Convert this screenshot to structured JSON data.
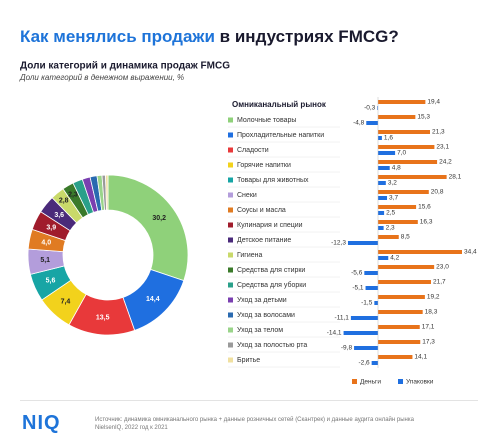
{
  "header": {
    "title_highlight": "Как менялись продажи",
    "title_rest": "в индустриях FMCG?"
  },
  "chart_data": [
    {
      "type": "pie",
      "donut": true,
      "title": "Доли категорий и динамика продаж FMCG",
      "subtitle": "Доли категорий в денежном выражении, %",
      "values": [
        30.2,
        14.4,
        13.5,
        7.4,
        5.6,
        5.1,
        4.0,
        3.9,
        3.6,
        2.8,
        2.3,
        2.0,
        1.6,
        1.4,
        1.0,
        0.7,
        0.5
      ],
      "value_labels": [
        "30,2",
        "14,4",
        "13,5",
        "7,4",
        "5,6",
        "5,1",
        "4,0",
        "3,9",
        "3,6",
        "2,8",
        "2,3",
        null,
        null,
        null,
        null,
        null,
        null
      ],
      "colors": [
        "#8fd17a",
        "#1f6fe0",
        "#e8393a",
        "#f2d21c",
        "#17a5a5",
        "#b39ddb",
        "#e07b22",
        "#a01c2c",
        "#4a2a7a",
        "#c9d96a",
        "#3a7a2a",
        "#2aa08a",
        "#7a3fb0",
        "#2a6ab0",
        "#9ad48a",
        "#9a9a9a",
        "#f0e0a0"
      ]
    },
    {
      "type": "bar",
      "orientation": "horizontal",
      "categories": [
        "Омниканальный рынок",
        "Молочные товары",
        "Прохладительные напитки",
        "Сладости",
        "Горячие напитки",
        "Товары для животных",
        "Снеки",
        "Соусы и масла",
        "Кулинария и специи",
        "Детское питание",
        "Гигиена",
        "Средства для стирки",
        "Средства для уборки",
        "Уход за детьми",
        "Уход за волосами",
        "Уход за телом",
        "Уход за полостью рта",
        "Бритье"
      ],
      "series": [
        {
          "name": "Деньги",
          "color": "#e8731a",
          "values": [
            19.4,
            15.3,
            21.3,
            23.1,
            24.2,
            28.1,
            20.8,
            15.6,
            16.3,
            8.5,
            34.4,
            23.0,
            21.7,
            19.2,
            18.3,
            17.1,
            17.3,
            14.1
          ],
          "value_labels": [
            "19,4",
            "15,3",
            "21,3",
            "23,1",
            "24,2",
            "28,1",
            "20,8",
            "15,6",
            "16,3",
            "8,5",
            "34,4",
            "23,0",
            "21,7",
            "19,2",
            "18,3",
            "17,1",
            "17,3",
            "14,1"
          ]
        },
        {
          "name": "Упаковки",
          "color": "#1f6fe0",
          "values": [
            -0.3,
            -4.8,
            1.6,
            7.0,
            4.8,
            3.2,
            3.7,
            2.5,
            2.3,
            -12.3,
            4.2,
            -5.6,
            -5.1,
            -1.5,
            -11.1,
            -14.1,
            -9.8,
            -2.6
          ],
          "value_labels": [
            "-0,3",
            "-4,8",
            "1,6",
            "7,0",
            "4,8",
            "3,2",
            "3,7",
            "2,5",
            "2,3",
            "-12,3",
            "4,2",
            "-5,6",
            "-5,1",
            "-1,5",
            "-11,1",
            "-14,1",
            "-9,8",
            "-2,6"
          ]
        }
      ]
    }
  ],
  "footer": {
    "logo": "NIQ",
    "source": "Источник: динамика омниканального рынка + данные розничных сетей (Скантрек) и данные аудита онлайн рынка NielsenIQ, 2022 год к 2021"
  }
}
